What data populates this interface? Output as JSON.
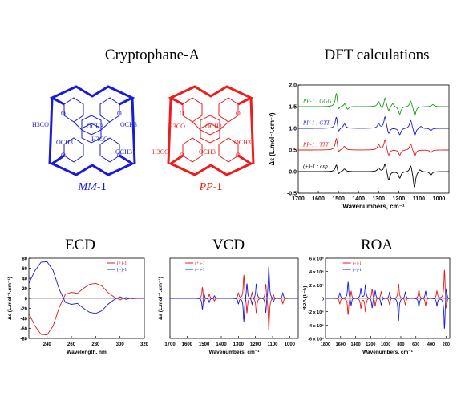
{
  "titles": {
    "cryptophane": "Cryptophane-A",
    "dft": "DFT calculations",
    "ecd": "ECD",
    "vcd": "VCD",
    "roa": "ROA"
  },
  "molecules": {
    "left": {
      "label_italic": "MM",
      "label_suffix": "-1",
      "color": "#1a1adb"
    },
    "right": {
      "label_italic": "PP",
      "label_suffix": "-1",
      "color": "#ee1c1c"
    },
    "groups": {
      "och3": "OCH3",
      "h3co": "H3CO",
      "o": "O"
    }
  },
  "colors": {
    "red": "#e31a1c",
    "blue": "#1a1adb",
    "green": "#1a9a1a",
    "black": "#000000"
  },
  "chart_data": [
    {
      "id": "dft",
      "type": "line",
      "xlabel": "Wavenumbers, cm⁻¹",
      "ylabel": "Δε (L.mol⁻¹.cm⁻¹)",
      "xlim": [
        1700,
        950
      ],
      "ylim": [
        -0.5,
        2.0
      ],
      "xticks": [
        "1700",
        "1600",
        "1500",
        "1400",
        "1300",
        "1200",
        "1100",
        "1000"
      ],
      "yticks": [
        "-0.5",
        "0.0",
        "0.5",
        "1.0",
        "1.5",
        "2.0"
      ],
      "series": [
        {
          "name": "PP-1 : GGG",
          "color": "green",
          "offset": 1.5,
          "peaks": [
            [
              1510,
              0.35
            ],
            [
              1500,
              -0.15
            ],
            [
              1468,
              0.08
            ],
            [
              1455,
              -0.08
            ],
            [
              1300,
              0.12
            ],
            [
              1282,
              -0.08
            ],
            [
              1268,
              0.22
            ],
            [
              1250,
              -0.12
            ],
            [
              1230,
              0.08
            ],
            [
              1195,
              -0.18
            ],
            [
              1140,
              0.15
            ],
            [
              1120,
              -0.22
            ],
            [
              1030,
              0.05
            ]
          ]
        },
        {
          "name": "PP-1 : GTT",
          "color": "blue",
          "offset": 1.0,
          "peaks": [
            [
              1510,
              0.3
            ],
            [
              1500,
              -0.15
            ],
            [
              1470,
              0.1
            ],
            [
              1300,
              0.1
            ],
            [
              1268,
              0.28
            ],
            [
              1250,
              -0.15
            ],
            [
              1195,
              -0.15
            ],
            [
              1140,
              0.2
            ],
            [
              1120,
              -0.18
            ],
            [
              1090,
              0.05
            ],
            [
              1040,
              -0.05
            ]
          ]
        },
        {
          "name": "PP-1 : TTT",
          "color": "red",
          "offset": 0.5,
          "peaks": [
            [
              1510,
              0.3
            ],
            [
              1500,
              -0.12
            ],
            [
              1470,
              0.08
            ],
            [
              1300,
              0.12
            ],
            [
              1268,
              0.25
            ],
            [
              1250,
              -0.15
            ],
            [
              1195,
              -0.12
            ],
            [
              1140,
              0.15
            ],
            [
              1120,
              -0.15
            ],
            [
              1040,
              -0.06
            ]
          ]
        },
        {
          "name": "(+)-1 : exp",
          "color": "black",
          "offset": 0.0,
          "peaks": [
            [
              1510,
              0.18
            ],
            [
              1500,
              -0.1
            ],
            [
              1470,
              0.06
            ],
            [
              1300,
              0.08
            ],
            [
              1268,
              0.2
            ],
            [
              1250,
              -0.22
            ],
            [
              1195,
              -0.15
            ],
            [
              1140,
              0.18
            ],
            [
              1122,
              -0.38
            ],
            [
              1095,
              0.06
            ],
            [
              1040,
              -0.08
            ]
          ]
        }
      ]
    },
    {
      "id": "ecd",
      "type": "line",
      "xlabel": "Wavelength, nm",
      "ylabel": "Δε (L.mol⁻¹.cm⁻¹)",
      "xlim": [
        225,
        320
      ],
      "ylim": [
        -80,
        80
      ],
      "xticks": [
        "240",
        "260",
        "280",
        "300",
        "320"
      ],
      "yticks": [
        "-80",
        "-60",
        "-40",
        "-20",
        "0",
        "20",
        "40",
        "60",
        "80"
      ],
      "series": [
        {
          "name": "(+)-1",
          "color": "red",
          "points": [
            [
              225,
              -30
            ],
            [
              230,
              -55
            ],
            [
              235,
              -72
            ],
            [
              240,
              -73
            ],
            [
              245,
              -55
            ],
            [
              250,
              -18
            ],
            [
              255,
              8
            ],
            [
              260,
              12
            ],
            [
              265,
              10
            ],
            [
              270,
              20
            ],
            [
              275,
              28
            ],
            [
              280,
              30
            ],
            [
              285,
              25
            ],
            [
              290,
              12
            ],
            [
              295,
              3
            ],
            [
              300,
              -3
            ],
            [
              305,
              2
            ],
            [
              310,
              -1
            ],
            [
              315,
              0
            ],
            [
              320,
              0
            ]
          ]
        },
        {
          "name": "(−)-1",
          "color": "blue",
          "points": [
            [
              225,
              30
            ],
            [
              230,
              55
            ],
            [
              235,
              72
            ],
            [
              240,
              73
            ],
            [
              245,
              55
            ],
            [
              250,
              18
            ],
            [
              255,
              -8
            ],
            [
              260,
              -12
            ],
            [
              265,
              -10
            ],
            [
              270,
              -20
            ],
            [
              275,
              -28
            ],
            [
              280,
              -30
            ],
            [
              285,
              -25
            ],
            [
              290,
              -12
            ],
            [
              295,
              -3
            ],
            [
              300,
              3
            ],
            [
              305,
              -2
            ],
            [
              310,
              1
            ],
            [
              315,
              0
            ],
            [
              320,
              0
            ]
          ]
        }
      ]
    },
    {
      "id": "vcd",
      "type": "line",
      "xlabel": "Wavenumbers, cm⁻¹",
      "ylabel": "Δε (L.mol⁻¹.cm⁻¹)",
      "xlim": [
        1700,
        950
      ],
      "ylim": [
        -0.75,
        0.75
      ],
      "xticks": [
        "1700",
        "1600",
        "1500",
        "1400",
        "1300",
        "1200",
        "1100",
        "1000"
      ],
      "yticks": [],
      "series": [
        {
          "name": "(+)-1",
          "color": "red",
          "peaks": [
            [
              1510,
              0.22
            ],
            [
              1500,
              -0.1
            ],
            [
              1470,
              0.08
            ],
            [
              1440,
              -0.05
            ],
            [
              1300,
              0.1
            ],
            [
              1268,
              0.45
            ],
            [
              1250,
              -0.3
            ],
            [
              1220,
              0.12
            ],
            [
              1195,
              -0.28
            ],
            [
              1140,
              0.3
            ],
            [
              1122,
              -0.62
            ],
            [
              1095,
              0.08
            ],
            [
              1040,
              -0.1
            ]
          ]
        },
        {
          "name": "(−)-1",
          "color": "blue",
          "peaks": [
            [
              1510,
              -0.22
            ],
            [
              1500,
              0.1
            ],
            [
              1470,
              -0.08
            ],
            [
              1440,
              0.05
            ],
            [
              1300,
              -0.1
            ],
            [
              1268,
              -0.45
            ],
            [
              1250,
              0.3
            ],
            [
              1220,
              -0.12
            ],
            [
              1195,
              0.28
            ],
            [
              1140,
              -0.3
            ],
            [
              1122,
              0.62
            ],
            [
              1095,
              -0.08
            ],
            [
              1040,
              0.1
            ]
          ]
        }
      ]
    },
    {
      "id": "roa",
      "type": "line",
      "xlabel": "Wavenumbers, cm⁻¹",
      "ylabel": "ROA (Iᵣ−Iₗ)",
      "xlim": [
        1800,
        150
      ],
      "ylim": [
        -6,
        6
      ],
      "xticks": [
        "1800",
        "1600",
        "1400",
        "1200",
        "1000",
        "800",
        "600",
        "400",
        "200"
      ],
      "yticks": [
        "-6 x 10⁴",
        "-4 x 10⁴",
        "-2 x 10⁴",
        "0",
        "2 x 10⁴",
        "4 x 10⁴",
        "6 x 10⁴"
      ],
      "series": [
        {
          "name": "(+)-1",
          "color": "red",
          "peaks": [
            [
              1610,
              -0.8
            ],
            [
              1500,
              -2.5
            ],
            [
              1460,
              1.2
            ],
            [
              1330,
              -1.5
            ],
            [
              1270,
              -2.0
            ],
            [
              1180,
              1.5
            ],
            [
              1140,
              -1.2
            ],
            [
              1060,
              1.0
            ],
            [
              950,
              -0.9
            ],
            [
              830,
              2.2
            ],
            [
              740,
              -1.0
            ],
            [
              560,
              1.3
            ],
            [
              470,
              -1.1
            ],
            [
              320,
              1.1
            ],
            [
              220,
              4.5
            ],
            [
              195,
              -2.0
            ]
          ]
        },
        {
          "name": "(−)-1",
          "color": "blue",
          "peaks": [
            [
              1610,
              0.8
            ],
            [
              1500,
              2.5
            ],
            [
              1460,
              -1.2
            ],
            [
              1330,
              1.5
            ],
            [
              1270,
              2.0
            ],
            [
              1180,
              -1.5
            ],
            [
              1140,
              1.2
            ],
            [
              1060,
              -1.0
            ],
            [
              950,
              0.9
            ],
            [
              830,
              -3.4
            ],
            [
              740,
              1.0
            ],
            [
              560,
              -1.3
            ],
            [
              470,
              1.1
            ],
            [
              320,
              -1.1
            ],
            [
              220,
              -4.8
            ],
            [
              195,
              2.0
            ]
          ]
        }
      ]
    }
  ]
}
